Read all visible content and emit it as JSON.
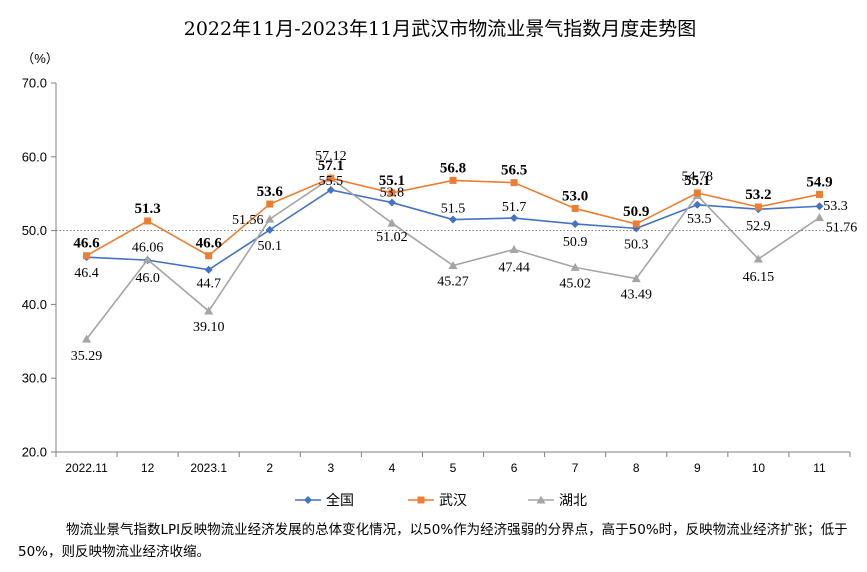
{
  "chart_data": {
    "type": "line",
    "title": "2022年11月-2023年11月武汉市物流业景气指数月度走势图",
    "ylabel": "（%）",
    "xlabel": "",
    "ylim": [
      20.0,
      70.0
    ],
    "yticks": [
      "20.0",
      "30.0",
      "40.0",
      "50.0",
      "60.0",
      "70.0"
    ],
    "categories": [
      "2022.11",
      "12",
      "2023.1",
      "2",
      "3",
      "4",
      "5",
      "6",
      "7",
      "8",
      "9",
      "10",
      "11"
    ],
    "reference_line": 50,
    "grid": false,
    "legend_position": "bottom",
    "series": [
      {
        "name": "全国",
        "color": "#4472C4",
        "marker": "diamond",
        "values": [
          46.4,
          46.0,
          44.7,
          50.1,
          55.5,
          53.8,
          51.5,
          51.7,
          50.9,
          50.3,
          53.5,
          52.9,
          53.3
        ],
        "labels": [
          "46.4",
          "46.0",
          "44.7",
          "50.1",
          "55.5",
          "53.8",
          "51.5",
          "51.7",
          "50.9",
          "50.3",
          "53.5",
          "52.9",
          "53.3"
        ]
      },
      {
        "name": "武汉",
        "color": "#ED7D31",
        "marker": "square",
        "values": [
          46.6,
          51.3,
          46.6,
          53.6,
          57.1,
          55.1,
          56.8,
          56.5,
          53.0,
          50.9,
          55.1,
          53.2,
          54.9
        ],
        "labels": [
          "46.6",
          "51.3",
          "46.6",
          "53.6",
          "57.1",
          "55.1",
          "56.8",
          "56.5",
          "53.0",
          "50.9",
          "55.1",
          "53.2",
          "54.9"
        ]
      },
      {
        "name": "湖北",
        "color": "#A5A5A5",
        "marker": "triangle",
        "values": [
          35.29,
          46.06,
          39.1,
          51.56,
          57.12,
          51.02,
          45.27,
          47.44,
          45.02,
          43.49,
          54.78,
          46.15,
          51.76
        ],
        "labels": [
          "35.29",
          "46.06",
          "39.10",
          "51.56",
          "57.12",
          "51.02",
          "45.27",
          "47.44",
          "45.02",
          "43.49",
          "54.78",
          "46.15",
          "51.76"
        ]
      }
    ]
  },
  "footnote": "物流业景气指数LPI反映物流业经济发展的总体变化情况，以50%作为经济强弱的分界点，高于50%时，反映物流业经济扩张；低于50%，则反映物流业经济收缩。"
}
